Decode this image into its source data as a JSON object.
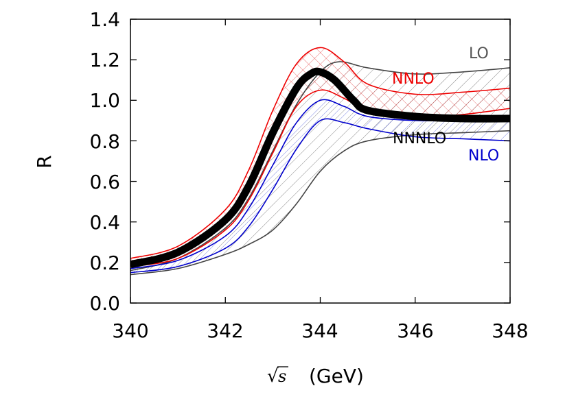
{
  "chart_data": {
    "type": "line",
    "xlabel": "√s (GeV)",
    "xlabel_parts": {
      "sqrt": "√",
      "var": "s",
      "unit": "(GeV)"
    },
    "ylabel": "R",
    "xlim": [
      340,
      348
    ],
    "ylim": [
      0.0,
      1.4
    ],
    "xticks": [
      340,
      342,
      344,
      346,
      348
    ],
    "xtick_labels": [
      "340",
      "342",
      "344",
      "346",
      "348"
    ],
    "yticks": [
      0.0,
      0.2,
      0.4,
      0.6,
      0.8,
      1.0,
      1.2,
      1.4
    ],
    "ytick_labels": [
      "0.0",
      "0.2",
      "0.4",
      "0.6",
      "0.8",
      "1.0",
      "1.2",
      "1.4"
    ],
    "series": [
      {
        "name": "LO",
        "color": "#444444",
        "hatch": "diagonal",
        "upper": {
          "x": [
            340,
            341,
            342,
            342.5,
            343,
            343.5,
            344,
            344.4,
            345,
            346,
            347,
            348
          ],
          "y": [
            0.16,
            0.22,
            0.37,
            0.52,
            0.75,
            0.98,
            1.14,
            1.19,
            1.16,
            1.13,
            1.14,
            1.16
          ]
        },
        "lower": {
          "x": [
            340,
            341,
            342,
            342.5,
            343,
            343.5,
            344,
            344.5,
            345,
            346,
            347,
            348
          ],
          "y": [
            0.14,
            0.17,
            0.24,
            0.29,
            0.36,
            0.49,
            0.65,
            0.75,
            0.8,
            0.83,
            0.84,
            0.85
          ]
        }
      },
      {
        "name": "NLO",
        "color": "#0000cc",
        "hatch": "diagonal",
        "upper": {
          "x": [
            340,
            341,
            342,
            342.5,
            343,
            343.5,
            344,
            344.5,
            345,
            346,
            347,
            348
          ],
          "y": [
            0.17,
            0.21,
            0.33,
            0.47,
            0.68,
            0.89,
            1.0,
            0.97,
            0.92,
            0.9,
            0.9,
            0.9
          ]
        },
        "lower": {
          "x": [
            340,
            341,
            342,
            342.5,
            343,
            343.5,
            344,
            344.5,
            345,
            346,
            347,
            348
          ],
          "y": [
            0.15,
            0.18,
            0.27,
            0.38,
            0.56,
            0.76,
            0.9,
            0.89,
            0.86,
            0.82,
            0.81,
            0.8
          ]
        }
      },
      {
        "name": "NNLO",
        "color": "#ee0000",
        "hatch": "cross",
        "upper": {
          "x": [
            340,
            341,
            342,
            342.5,
            343,
            343.5,
            344,
            344.5,
            345,
            346,
            347,
            348
          ],
          "y": [
            0.22,
            0.28,
            0.46,
            0.66,
            0.95,
            1.18,
            1.26,
            1.19,
            1.08,
            1.03,
            1.04,
            1.06
          ]
        },
        "lower": {
          "x": [
            340,
            341,
            342,
            342.5,
            343,
            343.5,
            344,
            344.5,
            345,
            346,
            347,
            348
          ],
          "y": [
            0.18,
            0.22,
            0.36,
            0.51,
            0.74,
            0.97,
            1.05,
            1.01,
            0.95,
            0.92,
            0.93,
            0.96
          ]
        }
      },
      {
        "name": "NNNLO",
        "color": "#000000",
        "line": {
          "x": [
            340,
            341,
            342,
            342.5,
            343,
            343.5,
            343.8,
            344,
            344.3,
            344.7,
            345,
            346,
            347,
            348
          ],
          "y": [
            0.19,
            0.25,
            0.41,
            0.58,
            0.84,
            1.06,
            1.13,
            1.14,
            1.1,
            1.0,
            0.95,
            0.92,
            0.91,
            0.91
          ]
        }
      }
    ],
    "labels": {
      "LO": "LO",
      "NLO": "NLO",
      "NNLO": "NNLO",
      "NNNLO": "NNNLO"
    }
  }
}
